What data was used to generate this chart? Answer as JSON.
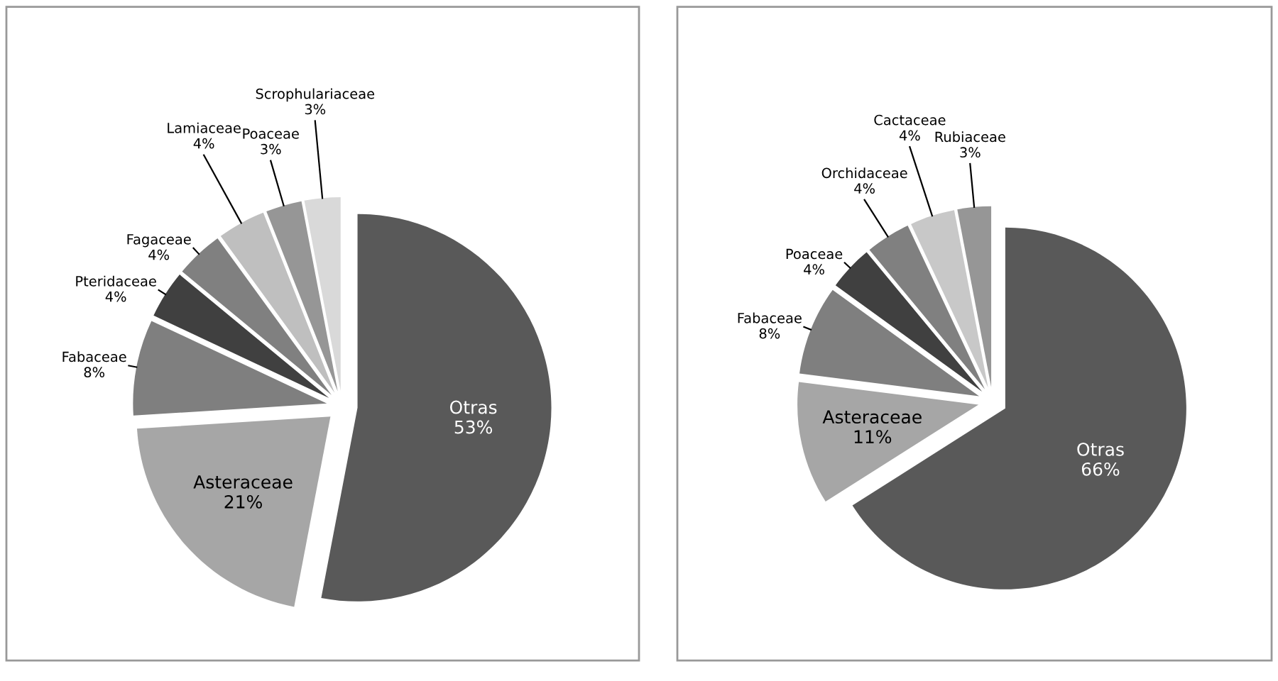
{
  "chart_data": [
    {
      "type": "pie",
      "categories": [
        "Otras",
        "Asteraceae",
        "Fabaceae",
        "Pteridaceae",
        "Fagaceae",
        "Lamiaceae",
        "Poaceae",
        "Scrophulariaceae"
      ],
      "values": [
        53,
        21,
        8,
        4,
        4,
        4,
        3,
        3
      ],
      "value_labels": [
        "53%",
        "21%",
        "8%",
        "4%",
        "4%",
        "4%",
        "3%",
        "3%"
      ],
      "colors": [
        "#595959",
        "#a6a6a6",
        "#7f7f7f",
        "#404040",
        "#808080",
        "#bfbfbf",
        "#969696",
        "#d9d9d9"
      ]
    },
    {
      "type": "pie",
      "categories": [
        "Otras",
        "Asteraceae",
        "Fabaceae",
        "Poaceae",
        "Orchidaceae",
        "Cactaceae",
        "Rubiaceae"
      ],
      "values": [
        66,
        11,
        8,
        4,
        4,
        4,
        3
      ],
      "value_labels": [
        "66%",
        "11%",
        "8%",
        "4%",
        "4%",
        "4%",
        "3%"
      ],
      "colors": [
        "#595959",
        "#a6a6a6",
        "#7f7f7f",
        "#404040",
        "#808080",
        "#c8c8c8",
        "#969696"
      ]
    }
  ]
}
